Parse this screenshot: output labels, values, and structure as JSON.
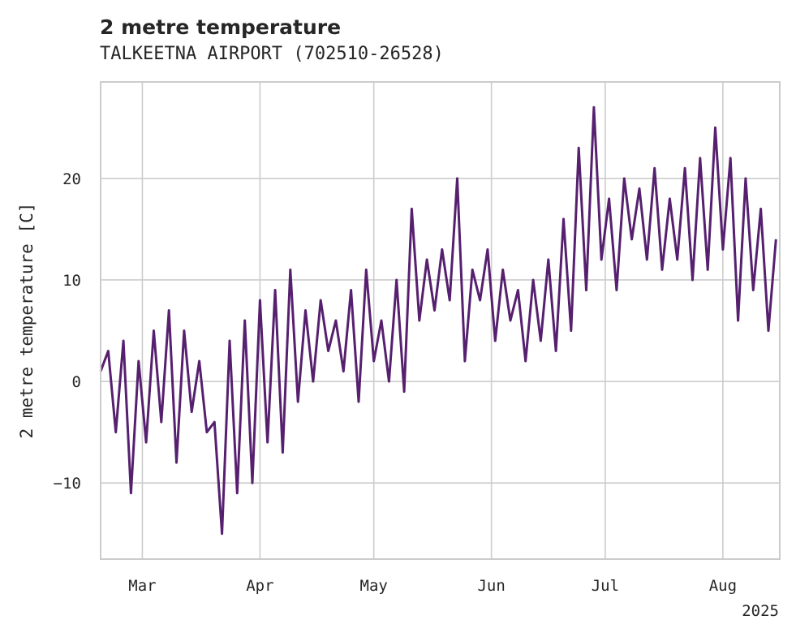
{
  "chart_data": {
    "type": "line",
    "title": "2 metre temperature",
    "subtitle": "TALKEETNA AIRPORT (702510-26528)",
    "ylabel": "2 metre temperature [C]",
    "xlabel": "",
    "x_range": [
      "2025-02-18",
      "2025-08-16"
    ],
    "ylim": [
      -17.5,
      29.5
    ],
    "grid": true,
    "line_color": "#56206f",
    "x_ticks": [
      {
        "date": "2025-03-01",
        "label": "Mar"
      },
      {
        "date": "2025-04-01",
        "label": "Apr"
      },
      {
        "date": "2025-05-01",
        "label": "May"
      },
      {
        "date": "2025-06-01",
        "label": "Jun"
      },
      {
        "date": "2025-07-01",
        "label": "Jul"
      },
      {
        "date": "2025-08-01",
        "label": "Aug"
      }
    ],
    "x_offset_label": "2025",
    "y_ticks": [
      {
        "value": -10,
        "label": "−10"
      },
      {
        "value": 0,
        "label": "0"
      },
      {
        "value": 10,
        "label": "10"
      },
      {
        "value": 20,
        "label": "20"
      }
    ],
    "series": [
      {
        "x": [
          "2025-02-18",
          "2025-02-20",
          "2025-02-22",
          "2025-02-24",
          "2025-02-26",
          "2025-02-28",
          "2025-03-02",
          "2025-03-04",
          "2025-03-06",
          "2025-03-08",
          "2025-03-10",
          "2025-03-12",
          "2025-03-14",
          "2025-03-16",
          "2025-03-18",
          "2025-03-20",
          "2025-03-22",
          "2025-03-24",
          "2025-03-26",
          "2025-03-28",
          "2025-03-30",
          "2025-04-01",
          "2025-04-03",
          "2025-04-05",
          "2025-04-07",
          "2025-04-09",
          "2025-04-11",
          "2025-04-13",
          "2025-04-15",
          "2025-04-17",
          "2025-04-19",
          "2025-04-21",
          "2025-04-23",
          "2025-04-25",
          "2025-04-27",
          "2025-04-29",
          "2025-05-01",
          "2025-05-03",
          "2025-05-05",
          "2025-05-07",
          "2025-05-09",
          "2025-05-11",
          "2025-05-13",
          "2025-05-15",
          "2025-05-17",
          "2025-05-19",
          "2025-05-21",
          "2025-05-23",
          "2025-05-25",
          "2025-05-27",
          "2025-05-29",
          "2025-05-31",
          "2025-06-02",
          "2025-06-04",
          "2025-06-06",
          "2025-06-08",
          "2025-06-10",
          "2025-06-12",
          "2025-06-14",
          "2025-06-16",
          "2025-06-18",
          "2025-06-20",
          "2025-06-22",
          "2025-06-24",
          "2025-06-26",
          "2025-06-28",
          "2025-06-30",
          "2025-07-02",
          "2025-07-04",
          "2025-07-06",
          "2025-07-08",
          "2025-07-10",
          "2025-07-12",
          "2025-07-14",
          "2025-07-16",
          "2025-07-18",
          "2025-07-20",
          "2025-07-22",
          "2025-07-24",
          "2025-07-26",
          "2025-07-28",
          "2025-07-30",
          "2025-08-01",
          "2025-08-03",
          "2025-08-05",
          "2025-08-07",
          "2025-08-09",
          "2025-08-11",
          "2025-08-13",
          "2025-08-15"
        ],
        "y": [
          1,
          3,
          -5,
          4,
          -11,
          2,
          -6,
          5,
          -4,
          7,
          -8,
          5,
          -3,
          2,
          -5,
          -4,
          -15,
          4,
          -11,
          6,
          -10,
          8,
          -6,
          9,
          -7,
          11,
          -2,
          7,
          0,
          8,
          3,
          6,
          1,
          9,
          -2,
          11,
          2,
          6,
          0,
          10,
          -1,
          17,
          6,
          12,
          7,
          13,
          8,
          20,
          2,
          11,
          8,
          13,
          4,
          11,
          6,
          9,
          2,
          10,
          4,
          12,
          3,
          16,
          5,
          23,
          9,
          27,
          12,
          18,
          9,
          20,
          14,
          19,
          12,
          21,
          11,
          18,
          12,
          21,
          10,
          22,
          11,
          25,
          13,
          22,
          6,
          20,
          9,
          17,
          5,
          14
        ]
      }
    ]
  }
}
